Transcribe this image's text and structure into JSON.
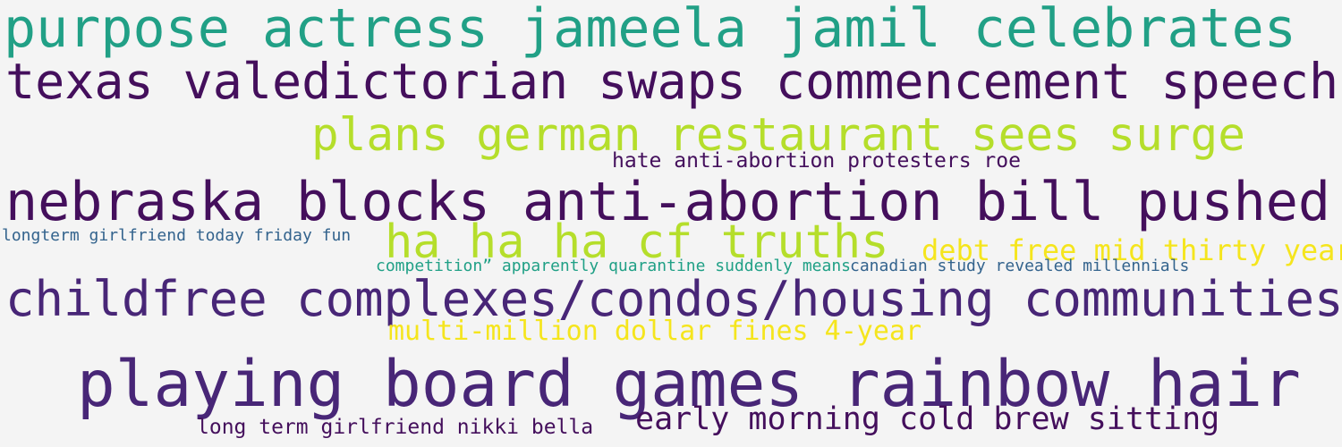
{
  "colors": {
    "background": "#f4f4f4",
    "dark_purple": "#440f5c",
    "purple": "#482677",
    "teal": "#20a086",
    "lime": "#b5de2b",
    "yellow": "#f5e51d",
    "blue": "#33638d"
  },
  "phrases": [
    {
      "text": "purpose actress jameela jamil celebrates",
      "color": "#21a086"
    },
    {
      "text": "texas valedictorian swaps commencement speech",
      "color": "#440f5c"
    },
    {
      "text": "plans german restaurant sees surge",
      "color": "#b5de2b"
    },
    {
      "text": "hate anti-abortion protesters roe",
      "color": "#440f5c"
    },
    {
      "text": "nebraska blocks anti-abortion bill pushed",
      "color": "#440f5c"
    },
    {
      "text": "longterm girlfriend today friday fun",
      "color": "#33638d"
    },
    {
      "text": "ha ha ha cf truths",
      "color": "#b5de2b"
    },
    {
      "text": "debt free mid thirty year",
      "color": "#f5e51d"
    },
    {
      "text": "competition” apparently quarantine suddenly means",
      "color": "#20a086"
    },
    {
      "text": "canadian study revealed millennials",
      "color": "#33638d"
    },
    {
      "text": "childfree complexes/condos/housing communities",
      "color": "#482677"
    },
    {
      "text": "multi-million dollar fines 4-year",
      "color": "#f5e51d"
    },
    {
      "text": "playing board games rainbow hair",
      "color": "#482677"
    },
    {
      "text": "long term girlfriend nikki bella",
      "color": "#440f5c"
    },
    {
      "text": "early morning cold brew sitting",
      "color": "#440f5c"
    }
  ]
}
